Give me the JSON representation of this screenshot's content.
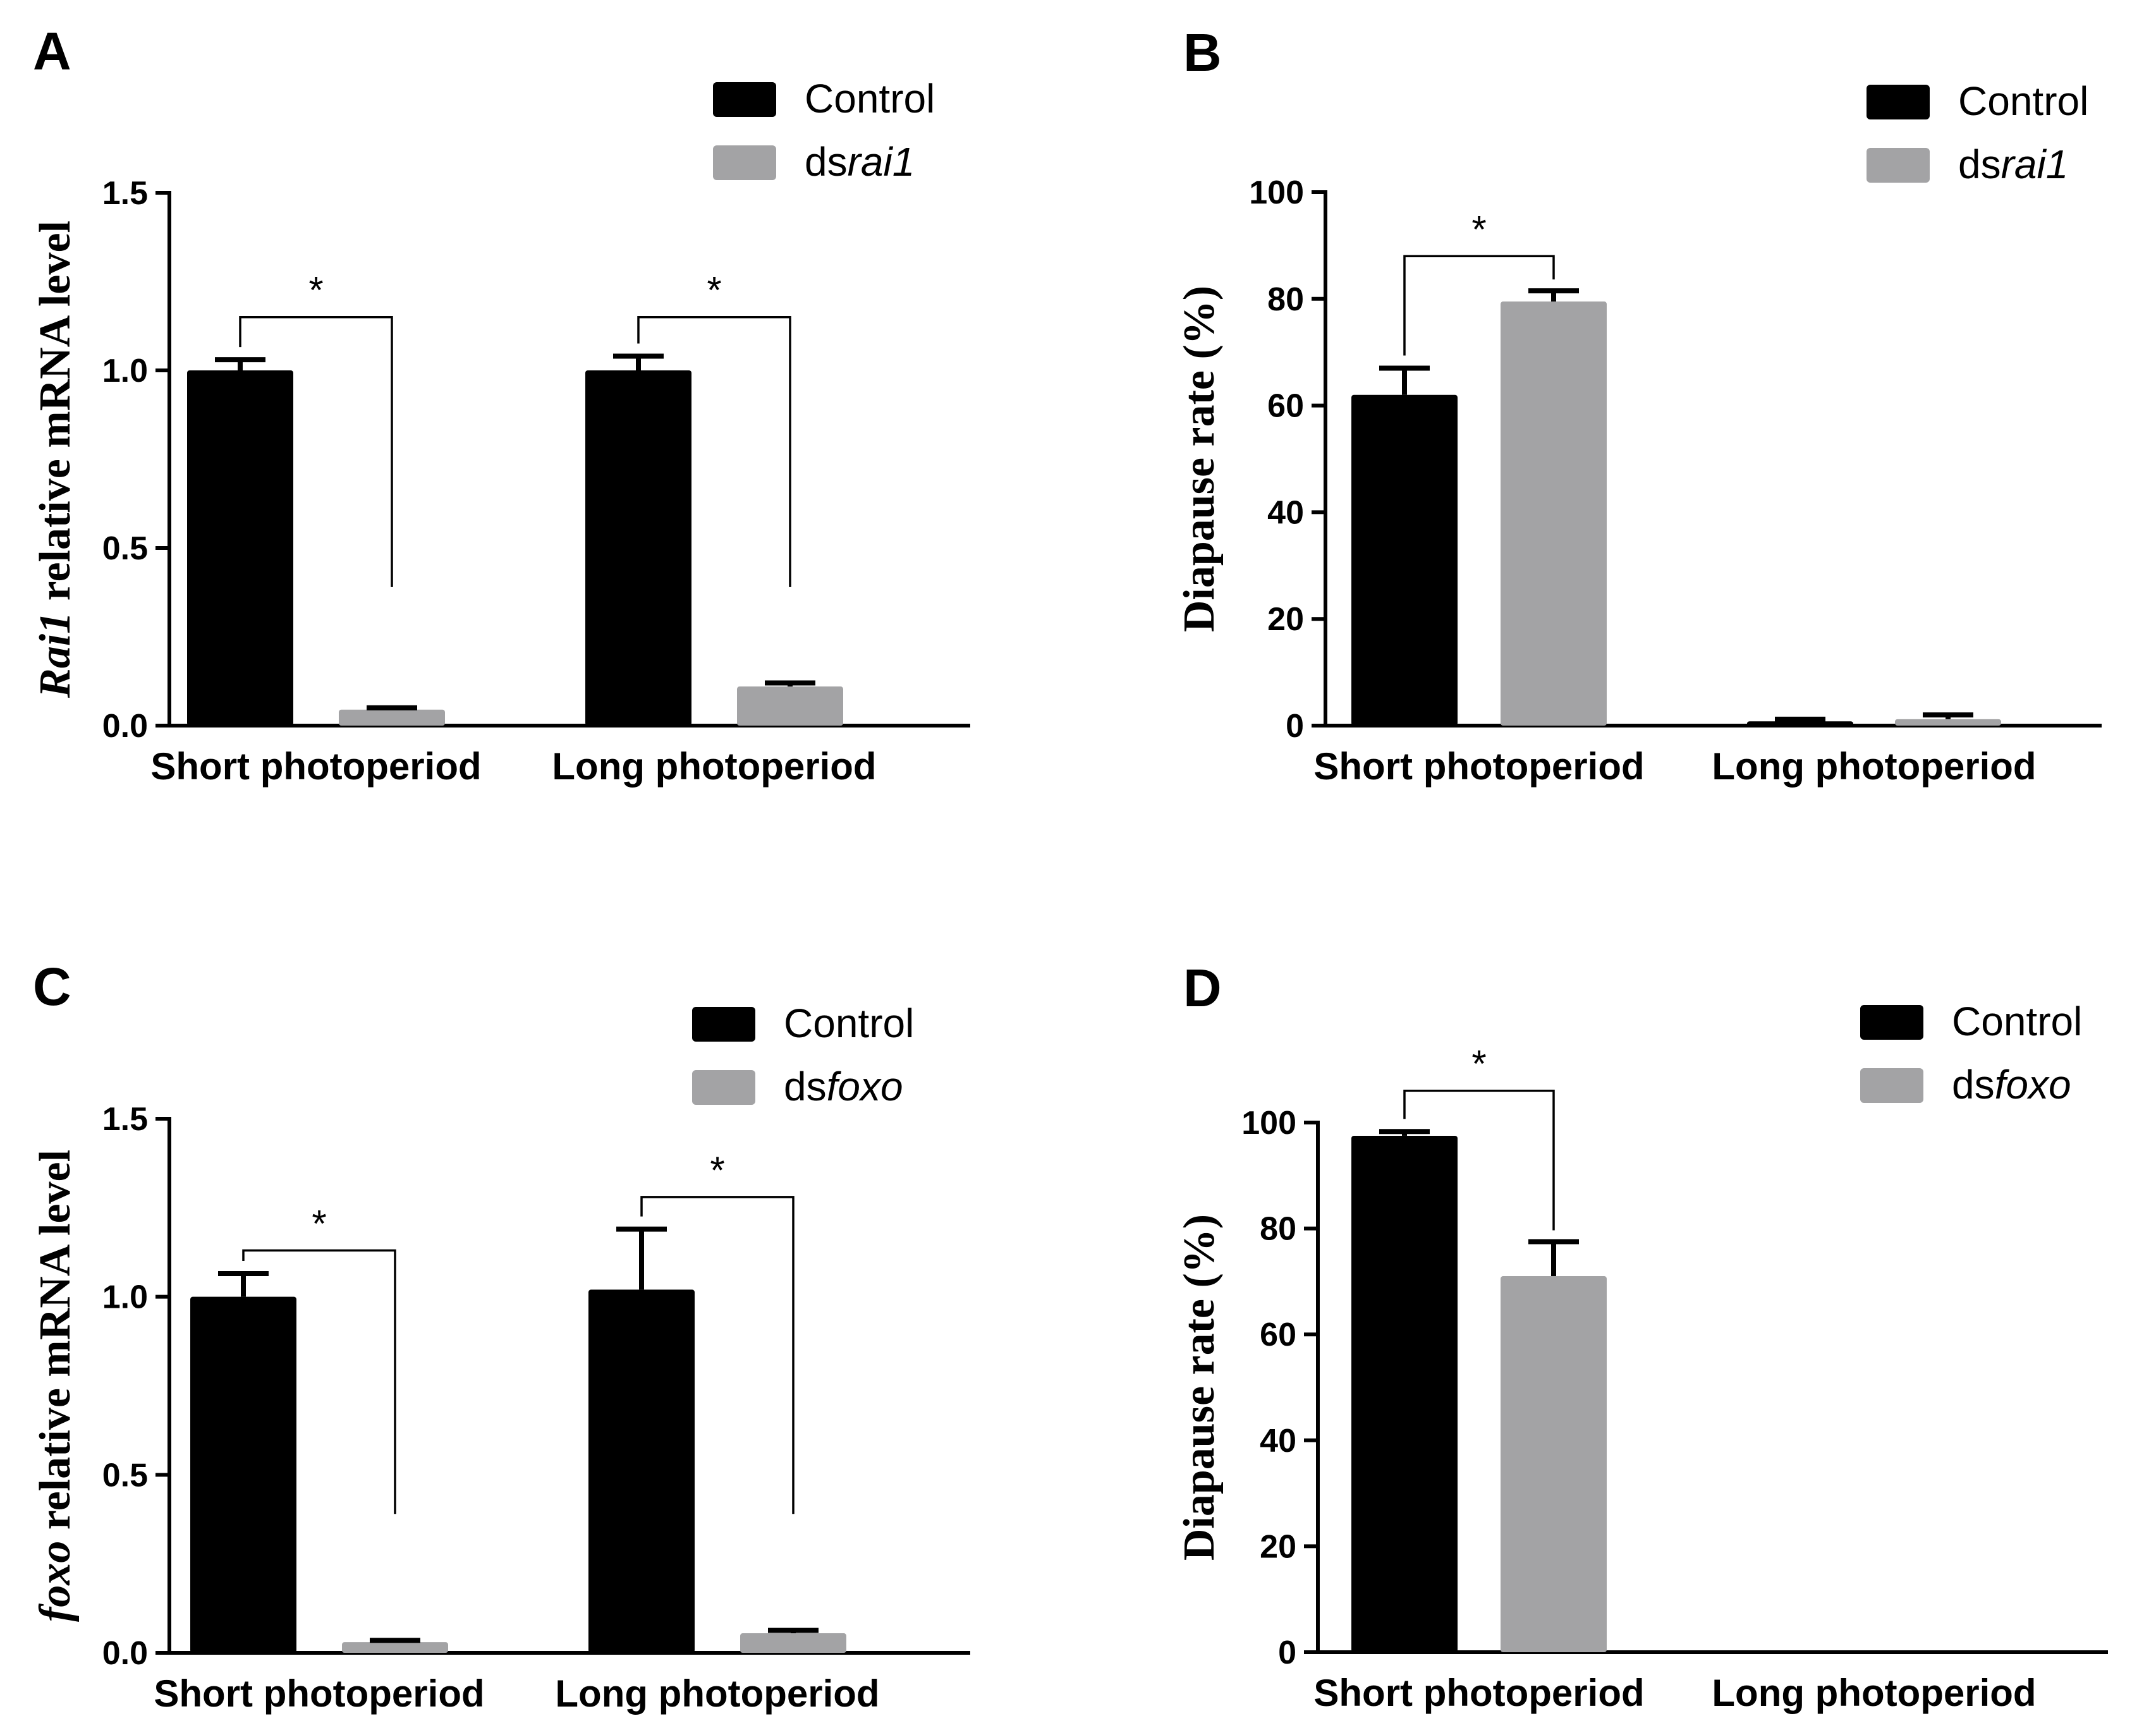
{
  "figure": {
    "description_text": [],
    "colors": {
      "control": "#000000",
      "treatment": "#a3a3a5",
      "axis": "#000000",
      "background": "#ffffff"
    }
  },
  "chart_data": [
    {
      "panel": "A",
      "type": "bar",
      "ylabel": {
        "italic": "Rai1",
        "rest": " relative mRNA level"
      },
      "ylim": [
        0,
        1.5
      ],
      "yticks": [
        "0.0",
        "0.5",
        "1.0",
        "1.5"
      ],
      "ytick_values": [
        0,
        0.5,
        1.0,
        1.5
      ],
      "categories": [
        "Short photoperiod",
        "Long photoperiod"
      ],
      "series": [
        {
          "name": "Control",
          "name_prefix": "Control",
          "name_italic": "",
          "color": "#000000",
          "values": [
            1.0,
            1.0
          ],
          "errors": [
            0.03,
            0.04
          ]
        },
        {
          "name": "dsrai1",
          "name_prefix": "ds",
          "name_italic": "rai1",
          "color": "#a3a3a5",
          "values": [
            0.045,
            0.11
          ],
          "errors": [
            0.005,
            0.01
          ]
        }
      ],
      "significance": [
        {
          "category": 0,
          "label": "*",
          "bracket_y": 1.15
        },
        {
          "category": 1,
          "label": "*",
          "bracket_y": 1.15
        }
      ]
    },
    {
      "panel": "B",
      "type": "bar",
      "ylabel": {
        "italic": "",
        "rest": "Diapause rate (%)"
      },
      "ylim": [
        0,
        100
      ],
      "yticks": [
        "0",
        "20",
        "40",
        "60",
        "80",
        "100"
      ],
      "ytick_values": [
        0,
        20,
        40,
        60,
        80,
        100
      ],
      "categories": [
        "Short photoperiod",
        "Long photoperiod"
      ],
      "series": [
        {
          "name": "Control",
          "name_prefix": "Control",
          "name_italic": "",
          "color": "#000000",
          "values": [
            62,
            0.8
          ],
          "errors": [
            5,
            0.4
          ]
        },
        {
          "name": "dsrai1",
          "name_prefix": "ds",
          "name_italic": "rai1",
          "color": "#a3a3a5",
          "values": [
            79.5,
            1.2
          ],
          "errors": [
            2,
            0.8
          ]
        }
      ],
      "significance": [
        {
          "category": 0,
          "label": "*",
          "bracket_y": 88
        }
      ]
    },
    {
      "panel": "C",
      "type": "bar",
      "ylabel": {
        "italic": "foxo",
        "rest": " relative mRNA level"
      },
      "ylim": [
        0,
        1.5
      ],
      "yticks": [
        "0.0",
        "0.5",
        "1.0",
        "1.5"
      ],
      "ytick_values": [
        0,
        0.5,
        1.0,
        1.5
      ],
      "categories": [
        "Short photoperiod",
        "Long photoperiod"
      ],
      "series": [
        {
          "name": "Control",
          "name_prefix": "Control",
          "name_italic": "",
          "color": "#000000",
          "values": [
            1.0,
            1.02
          ],
          "errors": [
            0.065,
            0.17
          ]
        },
        {
          "name": "dsfoxo",
          "name_prefix": "ds",
          "name_italic": "foxo",
          "color": "#a3a3a5",
          "values": [
            0.03,
            0.055
          ],
          "errors": [
            0.005,
            0.008
          ]
        }
      ],
      "significance": [
        {
          "category": 0,
          "label": "*",
          "bracket_y": 1.13
        },
        {
          "category": 1,
          "label": "*",
          "bracket_y": 1.28
        }
      ]
    },
    {
      "panel": "D",
      "type": "bar",
      "ylabel": {
        "italic": "",
        "rest": "Diapause rate (%)"
      },
      "ylim": [
        0,
        100
      ],
      "yticks": [
        "0",
        "20",
        "40",
        "60",
        "80",
        "100"
      ],
      "ytick_values": [
        0,
        20,
        40,
        60,
        80,
        100
      ],
      "categories": [
        "Short photoperiod",
        "Long photoperiod"
      ],
      "series": [
        {
          "name": "Control",
          "name_prefix": "Control",
          "name_italic": "",
          "color": "#000000",
          "values": [
            97.5,
            0
          ],
          "errors": [
            0.8,
            0
          ]
        },
        {
          "name": "dsfoxo",
          "name_prefix": "ds",
          "name_italic": "foxo",
          "color": "#a3a3a5",
          "values": [
            71,
            0
          ],
          "errors": [
            6.5,
            0
          ]
        }
      ],
      "significance": [
        {
          "category": 0,
          "label": "*",
          "bracket_y": 106
        }
      ]
    }
  ]
}
